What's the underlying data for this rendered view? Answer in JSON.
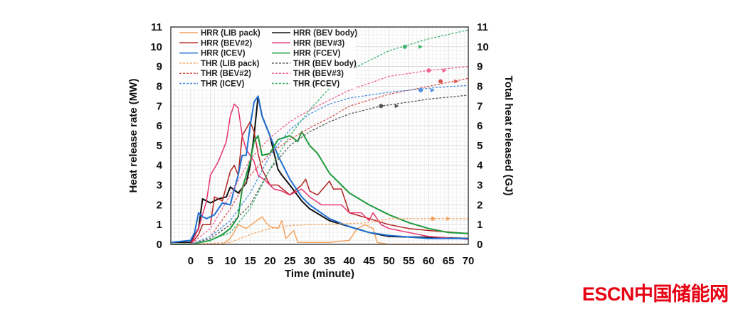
{
  "chart_data": {
    "type": "line",
    "xlabel": "Time (minute)",
    "ylabel": "Heat release rate (MW)",
    "y2label": "Total heat released (GJ)",
    "xlim": [
      -5,
      70
    ],
    "ylim": [
      0,
      11
    ],
    "y2lim": [
      0,
      11
    ],
    "xticks": [
      0,
      5,
      10,
      15,
      20,
      25,
      30,
      35,
      40,
      45,
      50,
      55,
      60,
      65,
      70
    ],
    "yticks": [
      0,
      1,
      2,
      3,
      4,
      5,
      6,
      7,
      8,
      9,
      10,
      11
    ],
    "grid": true,
    "legend_position": "top-left",
    "series": [
      {
        "name": "HRR (LIB pack)",
        "axis": "left",
        "style": "solid",
        "color": "#f4a460",
        "x": [
          -5,
          0,
          8,
          10,
          12,
          14,
          16,
          18,
          19,
          20,
          22,
          23,
          24,
          26,
          27,
          30,
          35,
          40,
          42,
          44,
          46,
          47,
          50,
          70
        ],
        "y": [
          0,
          0,
          0,
          0.3,
          1.0,
          0.8,
          1.1,
          1.4,
          1.1,
          0.9,
          0.8,
          1.2,
          0.3,
          0.7,
          0.1,
          0.1,
          0.1,
          0.2,
          0.8,
          1.0,
          0.8,
          0.1,
          0,
          0
        ]
      },
      {
        "name": "HRR (BEV body)",
        "axis": "left",
        "style": "solid",
        "color": "#111111",
        "x": [
          -5,
          0,
          2,
          3,
          5,
          7,
          9,
          10,
          12,
          14,
          15,
          16,
          17,
          18,
          20,
          22,
          23,
          25,
          28,
          30,
          35,
          40,
          45,
          50,
          60,
          70
        ],
        "y": [
          0.1,
          0.1,
          0.8,
          2.3,
          2.1,
          2.3,
          2.4,
          2.9,
          2.6,
          3.1,
          4.0,
          5.5,
          7.5,
          6.5,
          5.5,
          3.8,
          3.5,
          3.0,
          2.2,
          1.8,
          1.2,
          0.9,
          0.6,
          0.4,
          0.35,
          0.3
        ]
      },
      {
        "name": "HRR (BEV#2)",
        "axis": "left",
        "style": "solid",
        "color": "#b22222",
        "x": [
          -5,
          0,
          2,
          3,
          5,
          6,
          8,
          10,
          11,
          12,
          13,
          15,
          16,
          17,
          18,
          20,
          22,
          25,
          28,
          29,
          30,
          32,
          35,
          36,
          38,
          40,
          45,
          50,
          55,
          60,
          70
        ],
        "y": [
          0,
          0,
          0.5,
          1.0,
          1.0,
          2.4,
          2.2,
          3.7,
          4.0,
          3.5,
          5.5,
          6.2,
          5.7,
          4.6,
          3.8,
          3.0,
          3.0,
          2.5,
          3.0,
          3.3,
          2.7,
          2.5,
          3.2,
          2.8,
          2.8,
          1.6,
          1.3,
          1.0,
          0.8,
          0.7,
          0.55
        ]
      },
      {
        "name": "HRR (BEV#3)",
        "axis": "left",
        "style": "solid",
        "color": "#e8336d",
        "x": [
          -5,
          0,
          2,
          4,
          5,
          7,
          9,
          10,
          11,
          12,
          13,
          14,
          15,
          16,
          17,
          19,
          21,
          23,
          25,
          28,
          30,
          33,
          35,
          38,
          40,
          43,
          45,
          46,
          48,
          50,
          55,
          60,
          70
        ],
        "y": [
          0,
          0,
          0.8,
          2.2,
          3.5,
          4.2,
          5.2,
          6.5,
          7.1,
          6.9,
          5.5,
          4.8,
          4.5,
          4.2,
          3.5,
          3.2,
          2.8,
          2.7,
          2.5,
          2.8,
          2.4,
          2.0,
          2.0,
          2.0,
          1.6,
          1.6,
          1.2,
          1.6,
          1.0,
          0.8,
          0.6,
          0.4,
          0.25
        ]
      },
      {
        "name": "HRR (ICEV)",
        "axis": "left",
        "style": "solid",
        "color": "#1f6fd1",
        "x": [
          -5,
          0,
          1,
          2,
          3,
          4,
          6,
          8,
          10,
          11,
          12,
          13,
          14,
          15,
          16,
          17,
          18,
          20,
          22,
          25,
          28,
          30,
          35,
          40,
          45,
          50,
          60,
          70
        ],
        "y": [
          0.1,
          0.2,
          0.6,
          1.6,
          1.4,
          1.3,
          1.5,
          2.1,
          2.0,
          2.8,
          3.5,
          4.5,
          4.5,
          6.0,
          7.2,
          7.5,
          6.5,
          5.5,
          4.5,
          3.3,
          2.4,
          2.0,
          1.3,
          0.9,
          0.6,
          0.45,
          0.3,
          0.3
        ]
      },
      {
        "name": "HRR (FCEV)",
        "axis": "left",
        "style": "solid",
        "color": "#1e9a3c",
        "x": [
          -5,
          0,
          5,
          8,
          10,
          12,
          13,
          14,
          15,
          16,
          17,
          18,
          20,
          22,
          25,
          27,
          28,
          30,
          32,
          35,
          38,
          40,
          45,
          50,
          55,
          60,
          65,
          70
        ],
        "y": [
          0,
          0,
          0.2,
          0.5,
          0.8,
          1.4,
          2.8,
          3.5,
          4.2,
          5.2,
          5.5,
          4.5,
          4.6,
          5.3,
          5.5,
          5.2,
          5.7,
          5.0,
          4.6,
          3.6,
          3.0,
          2.6,
          2.0,
          1.5,
          1.1,
          0.8,
          0.6,
          0.55
        ]
      },
      {
        "name": "THR (LIB pack)",
        "axis": "right",
        "style": "dashed",
        "color": "#f4a460",
        "x": [
          -5,
          0,
          10,
          15,
          20,
          25,
          30,
          40,
          45,
          50,
          70
        ],
        "y": [
          0,
          0,
          0.1,
          0.5,
          0.8,
          0.95,
          1.0,
          1.05,
          1.1,
          1.3,
          1.3
        ]
      },
      {
        "name": "THR (BEV body)",
        "axis": "right",
        "style": "dashed",
        "color": "#555555",
        "x": [
          -5,
          0,
          5,
          10,
          15,
          20,
          25,
          30,
          35,
          40,
          48,
          55,
          60,
          70
        ],
        "y": [
          0,
          0,
          0.3,
          1.0,
          2.0,
          3.8,
          5.0,
          5.7,
          6.2,
          6.6,
          7.0,
          7.2,
          7.35,
          7.55
        ]
      },
      {
        "name": "THR (BEV#2)",
        "axis": "right",
        "style": "dashed",
        "color": "#d9534f",
        "x": [
          -5,
          0,
          5,
          10,
          15,
          20,
          25,
          30,
          35,
          40,
          50,
          60,
          70
        ],
        "y": [
          0,
          0,
          0.4,
          1.8,
          3.5,
          4.6,
          5.3,
          5.9,
          6.4,
          7.0,
          7.6,
          8.0,
          8.4
        ]
      },
      {
        "name": "THR (BEV#3)",
        "axis": "right",
        "style": "dashed",
        "color": "#f06292",
        "x": [
          -5,
          0,
          5,
          10,
          15,
          20,
          25,
          30,
          35,
          40,
          50,
          60,
          70
        ],
        "y": [
          0,
          0,
          0.8,
          2.5,
          4.3,
          5.4,
          6.2,
          6.8,
          7.3,
          7.8,
          8.5,
          8.8,
          9.0
        ]
      },
      {
        "name": "THR (ICEV)",
        "axis": "right",
        "style": "dashed",
        "color": "#4a90e2",
        "x": [
          -5,
          0,
          5,
          10,
          15,
          20,
          25,
          30,
          35,
          40,
          50,
          60,
          70
        ],
        "y": [
          0,
          0,
          0.4,
          1.2,
          2.6,
          4.5,
          5.8,
          6.6,
          7.1,
          7.4,
          7.7,
          7.9,
          8.05
        ]
      },
      {
        "name": "THR (FCEV)",
        "axis": "right",
        "style": "dashed",
        "color": "#3cb371",
        "x": [
          -5,
          0,
          5,
          10,
          15,
          20,
          25,
          30,
          35,
          40,
          50,
          55,
          60,
          70
        ],
        "y": [
          0,
          0,
          0.2,
          0.6,
          1.8,
          3.8,
          5.5,
          6.8,
          7.9,
          8.8,
          9.8,
          10.1,
          10.4,
          10.85
        ]
      }
    ],
    "markers": [
      {
        "series": "THR (BEV body)",
        "x": 48,
        "y": 7.0,
        "shape": "circle"
      },
      {
        "series": "THR (BEV body)",
        "x": 52,
        "y": 7.0,
        "shape": "triangle"
      },
      {
        "series": "THR (FCEV)",
        "x": 54,
        "y": 10.0,
        "shape": "circle"
      },
      {
        "series": "THR (FCEV)",
        "x": 58,
        "y": 10.0,
        "shape": "triangle"
      },
      {
        "series": "THR (BEV#3)",
        "x": 60,
        "y": 8.8,
        "shape": "circle"
      },
      {
        "series": "THR (BEV#3)",
        "x": 64,
        "y": 8.8,
        "shape": "triangle"
      },
      {
        "series": "THR (BEV#2)",
        "x": 63,
        "y": 8.25,
        "shape": "circle"
      },
      {
        "series": "THR (BEV#2)",
        "x": 67,
        "y": 8.25,
        "shape": "triangle"
      },
      {
        "series": "THR (ICEV)",
        "x": 58,
        "y": 7.8,
        "shape": "circle"
      },
      {
        "series": "THR (ICEV)",
        "x": 61,
        "y": 7.8,
        "shape": "triangle"
      },
      {
        "series": "THR (LIB pack)",
        "x": 61,
        "y": 1.3,
        "shape": "circle"
      },
      {
        "series": "THR (LIB pack)",
        "x": 65,
        "y": 1.3,
        "shape": "triangle"
      }
    ]
  },
  "watermark": {
    "text": "ESCN中国储能网",
    "color": "#e60012"
  }
}
